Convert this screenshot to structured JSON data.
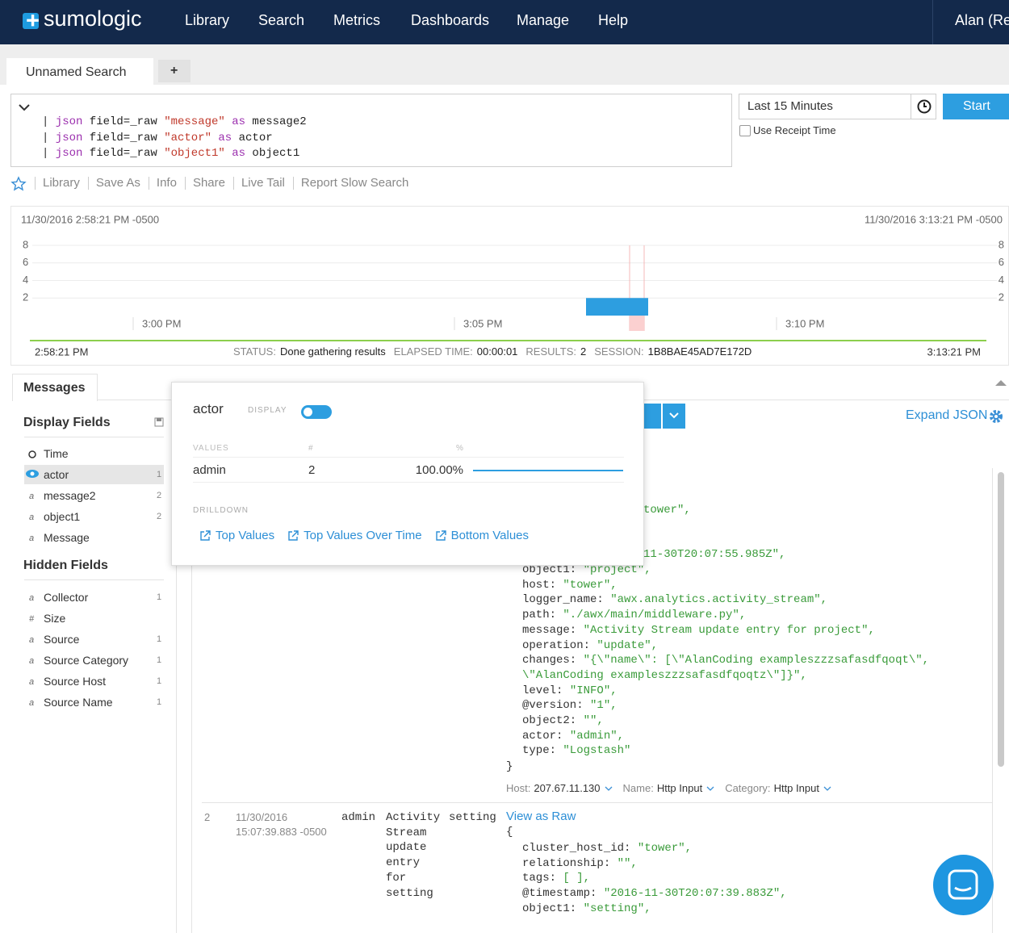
{
  "nav": {
    "logo": "sumologic",
    "items": [
      "Library",
      "Search",
      "Metrics",
      "Dashboards",
      "Manage",
      "Help"
    ],
    "user": "Alan (Re"
  },
  "tabs": {
    "active": "Unnamed Search",
    "add": "+"
  },
  "query": {
    "lines": [
      [
        "|",
        "json",
        "field=_raw",
        "\"message\"",
        "as",
        "message2"
      ],
      [
        "|",
        "json",
        "field=_raw",
        "\"actor\"",
        "as",
        "actor"
      ],
      [
        "|",
        "json",
        "field=_raw",
        "\"object1\"",
        "as",
        "object1"
      ]
    ]
  },
  "time_range": {
    "label": "Last 15 Minutes",
    "start": "Start",
    "receipt": "Use Receipt Time"
  },
  "toolbar": [
    "Library",
    "Save As",
    "Info",
    "Share",
    "Live Tail",
    "Report Slow Search"
  ],
  "histogram": {
    "start": "11/30/2016 2:58:21 PM -0500",
    "end": "11/30/2016 3:13:21 PM -0500",
    "ylim": [
      0,
      8
    ],
    "yticks": [
      2,
      4,
      6,
      8
    ],
    "xticks": [
      "3:00 PM",
      "3:05 PM",
      "3:10 PM"
    ],
    "values": [
      2
    ],
    "range_start": "2:58:21 PM",
    "range_end": "3:13:21 PM",
    "status": [
      [
        "STATUS:",
        "Done gathering results"
      ],
      [
        "ELAPSED TIME:",
        "00:00:01"
      ],
      [
        "RESULTS:",
        2
      ],
      [
        "SESSION:",
        "1B8BAE45AD7E172D"
      ]
    ]
  },
  "sidebar": {
    "tab": "Messages",
    "display_title": "Display Fields",
    "display_fields": [
      {
        "name": "Time"
      },
      {
        "name": "actor",
        "count": 1
      },
      {
        "name": "message2",
        "icon": "a",
        "count": 2
      },
      {
        "name": "object1",
        "icon": "a",
        "count": 2
      },
      {
        "name": "Message",
        "icon": "a"
      }
    ],
    "hidden_title": "Hidden Fields",
    "hidden_fields": [
      {
        "name": "Collector",
        "icon": "a",
        "count": 1
      },
      {
        "name": "Size",
        "icon": "#"
      },
      {
        "name": "Source",
        "icon": "a",
        "count": 1
      },
      {
        "name": "Source Category",
        "icon": "a",
        "count": 1
      },
      {
        "name": "Source Host",
        "icon": "a",
        "count": 1
      },
      {
        "name": "Source Name",
        "icon": "a",
        "count": 1
      }
    ]
  },
  "popup": {
    "field": "actor",
    "display": "DISPLAY",
    "headers": [
      "VALUES",
      "#",
      "%"
    ],
    "rows": [
      {
        "value": "admin",
        "count": 2,
        "percent": {
          "value": 100,
          "label": "100.00%"
        }
      }
    ],
    "drilldown": "DRILLDOWN",
    "links": [
      "Top Values",
      "Top Values Over Time",
      "Bottom Values"
    ]
  },
  "results": {
    "expand": "Expand JSON",
    "messages": [
      {
        "fragments": [
          "tower\",",
          "11-30T20:07:55.985Z\","
        ],
        "lines": [
          {
            "k": "object1:",
            "v": "\"project\","
          },
          {
            "k": "host:",
            "v": "\"tower\","
          },
          {
            "k": "logger_name:",
            "v": "\"awx.analytics.activity_stream\","
          },
          {
            "k": "path:",
            "v": "\"./awx/main/middleware.py\","
          },
          {
            "k": "message:",
            "v": "\"Activity Stream update entry for project\","
          },
          {
            "k": "operation:",
            "v": "\"update\","
          },
          {
            "k": "changes:",
            "v": "\"{\\\"name\\\": [\\\"AlanCoding exampleszzzsafasdfqoqt\\\","
          },
          {
            "v": "\\\"AlanCoding exampleszzzsafasdfqoqtz\\\"]}\","
          },
          {
            "k": "level:",
            "v": "\"INFO\","
          },
          {
            "k": "@version:",
            "v": "\"1\","
          },
          {
            "k": "object2:",
            "v": "\"\","
          },
          {
            "k": "actor:",
            "v": "\"admin\","
          },
          {
            "k": "type:",
            "v": "\"Logstash\""
          }
        ],
        "close": "}",
        "meta": [
          [
            "Host:",
            "207.67.11.130"
          ],
          [
            "Name:",
            "Http Input"
          ],
          [
            "Category:",
            "Http Input"
          ]
        ]
      },
      {
        "index": 2,
        "date": "11/30/2016",
        "time": "15:07:39.883 -0500",
        "actor": "admin",
        "message": "Activity Stream update entry for setting",
        "object1": "setting",
        "view_raw": "View as Raw",
        "open": "{",
        "lines": [
          {
            "k": "cluster_host_id:",
            "v": "\"tower\","
          },
          {
            "k": "relationship:",
            "v": "\"\","
          },
          {
            "k": "tags:",
            "v": "[ ],"
          },
          {
            "k": "@timestamp:",
            "v": "\"2016-11-30T20:07:39.883Z\","
          },
          {
            "k": "object1:",
            "v": "\"setting\","
          }
        ]
      }
    ]
  }
}
